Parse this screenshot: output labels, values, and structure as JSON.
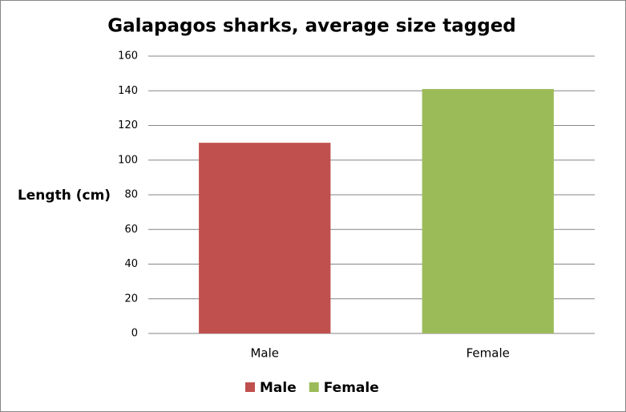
{
  "chart_data": {
    "type": "bar",
    "title": "Galapagos sharks, average size tagged",
    "y_label": "Length (cm)",
    "categories": [
      "Male",
      "Female"
    ],
    "series": [
      {
        "name": "Male",
        "color": "#c0504d",
        "values": [
          110,
          null
        ]
      },
      {
        "name": "Female",
        "color": "#9bbb59",
        "values": [
          null,
          141
        ]
      }
    ],
    "ylim": [
      0,
      160
    ],
    "yticks": [
      0,
      20,
      40,
      60,
      80,
      100,
      120,
      140,
      160
    ],
    "grid": true,
    "legend": "bottom"
  }
}
